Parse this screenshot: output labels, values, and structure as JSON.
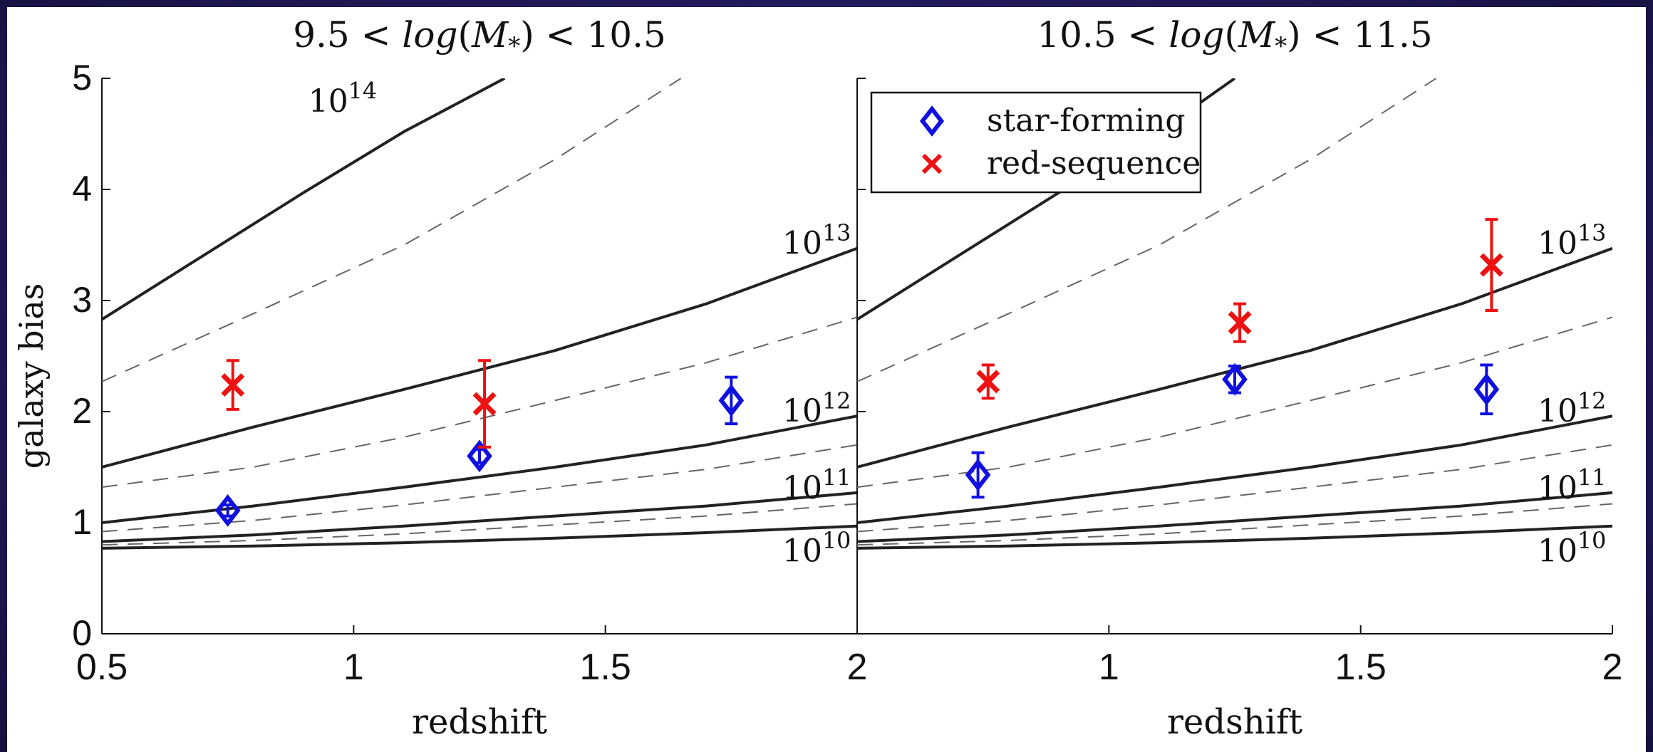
{
  "colors": {
    "star_forming": "#1010e0",
    "red_sequence": "#ee1111",
    "halo_curve": "#222222",
    "dashed_curve": "#666666",
    "background": "#241a5c"
  },
  "x_axis_label": "redshift",
  "y_axis_label": "galaxy bias",
  "chart_data": [
    {
      "type": "scatter",
      "title": "9.5 < log(M*) < 10.5",
      "xlabel": "redshift",
      "ylabel": "galaxy bias",
      "xlim": [
        0.5,
        2
      ],
      "ylim": [
        0,
        5
      ],
      "x_ticks": [
        "0.5",
        "1",
        "1.5",
        "2"
      ],
      "y_ticks": [
        "0",
        "1",
        "2",
        "3",
        "4",
        "5"
      ],
      "series": [
        {
          "name": "star-forming",
          "marker": "diamond",
          "points": [
            {
              "x": 0.75,
              "y": 1.11,
              "err": 0.05
            },
            {
              "x": 1.25,
              "y": 1.6,
              "err": 0.06
            },
            {
              "x": 1.75,
              "y": 2.1,
              "err": 0.21
            }
          ]
        },
        {
          "name": "red-sequence",
          "marker": "cross",
          "points": [
            {
              "x": 0.76,
              "y": 2.24,
              "err": 0.22
            },
            {
              "x": 1.26,
              "y": 2.07,
              "err": 0.39
            }
          ]
        }
      ],
      "halo_curves": [
        {
          "label": "10^14",
          "x": [
            0.5,
            0.7,
            0.9,
            1.1,
            1.3
          ],
          "y": [
            2.83,
            3.4,
            3.97,
            4.52,
            5.0
          ]
        },
        {
          "label": "10^13",
          "x": [
            0.5,
            0.8,
            1.1,
            1.4,
            1.7,
            2.0
          ],
          "y": [
            1.5,
            1.86,
            2.2,
            2.55,
            2.97,
            3.47
          ]
        },
        {
          "label": "10^12",
          "x": [
            0.5,
            0.8,
            1.1,
            1.4,
            1.7,
            2.0
          ],
          "y": [
            1.0,
            1.15,
            1.32,
            1.5,
            1.7,
            1.96
          ]
        },
        {
          "label": "10^11",
          "x": [
            0.5,
            0.8,
            1.1,
            1.4,
            1.7,
            2.0
          ],
          "y": [
            0.83,
            0.89,
            0.97,
            1.06,
            1.15,
            1.27
          ]
        },
        {
          "label": "10^10",
          "x": [
            0.5,
            0.8,
            1.1,
            1.4,
            1.7,
            2.0
          ],
          "y": [
            0.77,
            0.79,
            0.82,
            0.86,
            0.91,
            0.97
          ]
        }
      ],
      "dashed_curves": [
        {
          "x": [
            0.5,
            0.8,
            1.1,
            1.4,
            1.65
          ],
          "y": [
            2.27,
            2.88,
            3.5,
            4.27,
            5.0
          ]
        },
        {
          "x": [
            0.5,
            0.8,
            1.1,
            1.4,
            1.7,
            2.0
          ],
          "y": [
            1.32,
            1.5,
            1.77,
            2.1,
            2.44,
            2.85
          ]
        },
        {
          "x": [
            0.5,
            0.8,
            1.1,
            1.4,
            1.7,
            2.0
          ],
          "y": [
            0.92,
            1.02,
            1.16,
            1.32,
            1.48,
            1.7
          ]
        },
        {
          "x": [
            0.5,
            0.8,
            1.1,
            1.4,
            1.7,
            2.0
          ],
          "y": [
            0.8,
            0.84,
            0.9,
            0.98,
            1.06,
            1.17
          ]
        }
      ]
    },
    {
      "type": "scatter",
      "title": "10.5 < log(M*) < 11.5",
      "xlabel": "redshift",
      "ylabel": "",
      "xlim": [
        0.5,
        2
      ],
      "ylim": [
        0,
        5
      ],
      "x_ticks": [
        "",
        "1",
        "1.5",
        "2"
      ],
      "y_ticks": [],
      "legend": {
        "position": "top-left",
        "entries": [
          "star-forming",
          "red-sequence"
        ]
      },
      "series": [
        {
          "name": "star-forming",
          "marker": "diamond",
          "points": [
            {
              "x": 0.74,
              "y": 1.43,
              "err": 0.2
            },
            {
              "x": 1.25,
              "y": 2.29,
              "err": 0.12
            },
            {
              "x": 1.75,
              "y": 2.2,
              "err": 0.22
            }
          ]
        },
        {
          "name": "red-sequence",
          "marker": "cross",
          "points": [
            {
              "x": 0.76,
              "y": 2.27,
              "err": 0.15
            },
            {
              "x": 1.26,
              "y": 2.8,
              "err": 0.17
            },
            {
              "x": 1.76,
              "y": 3.32,
              "err": 0.41
            }
          ]
        }
      ],
      "halo_curves": [
        {
          "label": "",
          "x": [
            0.5,
            0.7,
            0.9,
            1.1,
            1.25
          ],
          "y": [
            2.83,
            3.4,
            3.97,
            4.52,
            5.0
          ]
        },
        {
          "label": "10^13",
          "x": [
            0.5,
            0.8,
            1.1,
            1.4,
            1.7,
            2.0
          ],
          "y": [
            1.5,
            1.86,
            2.2,
            2.55,
            2.97,
            3.47
          ]
        },
        {
          "label": "10^12",
          "x": [
            0.5,
            0.8,
            1.1,
            1.4,
            1.7,
            2.0
          ],
          "y": [
            1.0,
            1.15,
            1.32,
            1.5,
            1.7,
            1.96
          ]
        },
        {
          "label": "10^11",
          "x": [
            0.5,
            0.8,
            1.1,
            1.4,
            1.7,
            2.0
          ],
          "y": [
            0.83,
            0.89,
            0.97,
            1.06,
            1.15,
            1.27
          ]
        },
        {
          "label": "10^10",
          "x": [
            0.5,
            0.8,
            1.1,
            1.4,
            1.7,
            2.0
          ],
          "y": [
            0.77,
            0.79,
            0.82,
            0.86,
            0.91,
            0.97
          ]
        }
      ],
      "dashed_curves": [
        {
          "x": [
            0.5,
            0.8,
            1.1,
            1.4,
            1.65
          ],
          "y": [
            2.27,
            2.88,
            3.5,
            4.27,
            5.0
          ]
        },
        {
          "x": [
            0.5,
            0.8,
            1.1,
            1.4,
            1.7,
            2.0
          ],
          "y": [
            1.32,
            1.5,
            1.77,
            2.1,
            2.44,
            2.85
          ]
        },
        {
          "x": [
            0.5,
            0.8,
            1.1,
            1.4,
            1.7,
            2.0
          ],
          "y": [
            0.92,
            1.02,
            1.16,
            1.32,
            1.48,
            1.7
          ]
        },
        {
          "x": [
            0.5,
            0.8,
            1.1,
            1.4,
            1.7,
            2.0
          ],
          "y": [
            0.8,
            0.84,
            0.9,
            0.98,
            1.06,
            1.17
          ]
        }
      ]
    }
  ]
}
